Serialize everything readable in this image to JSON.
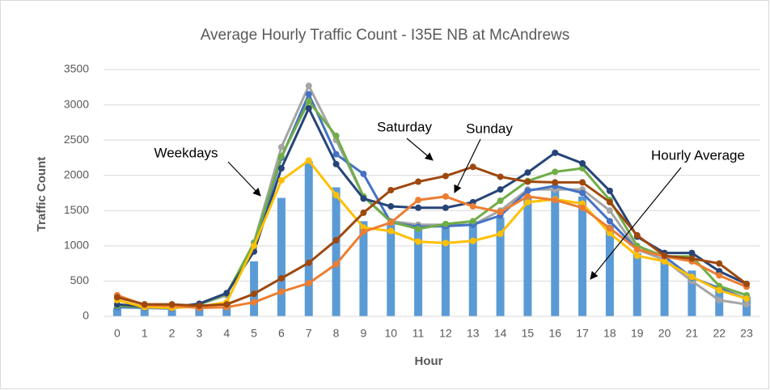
{
  "chart_data": {
    "type": "combo",
    "title": "Average Hourly Traffic Count - I35E NB at McAndrews",
    "x_label": "Hour",
    "y_label": "Traffic Count",
    "categories": [
      "0",
      "1",
      "2",
      "3",
      "4",
      "5",
      "6",
      "7",
      "8",
      "9",
      "10",
      "11",
      "12",
      "13",
      "14",
      "15",
      "16",
      "17",
      "18",
      "19",
      "20",
      "21",
      "22",
      "23"
    ],
    "ylim": [
      0,
      3500
    ],
    "yticks": [
      0,
      500,
      1000,
      1500,
      2000,
      2500,
      3000,
      3500
    ],
    "grid": true,
    "series": [
      {
        "type": "bar",
        "color": "#5b9bd5",
        "values": [
          120,
          100,
          90,
          130,
          200,
          780,
          1680,
          2200,
          1830,
          1350,
          1300,
          1300,
          1300,
          1350,
          1400,
          1700,
          1800,
          1700,
          1300,
          900,
          800,
          650,
          380,
          280
        ]
      },
      {
        "type": "line",
        "color": "#a5a5a5",
        "values": [
          150,
          130,
          120,
          170,
          300,
          1050,
          2400,
          3270,
          2500,
          1700,
          1350,
          1300,
          1300,
          1300,
          1500,
          1800,
          1800,
          1800,
          1500,
          950,
          800,
          500,
          230,
          170
        ]
      },
      {
        "type": "line",
        "color": "#4472c4",
        "values": [
          130,
          120,
          110,
          170,
          320,
          980,
          2250,
          3150,
          2300,
          2020,
          1330,
          1270,
          1280,
          1300,
          1430,
          1780,
          1850,
          1750,
          1350,
          950,
          850,
          550,
          400,
          250
        ]
      },
      {
        "type": "line",
        "color": "#70ad47",
        "values": [
          150,
          130,
          120,
          170,
          320,
          1040,
          2270,
          3050,
          2560,
          1700,
          1340,
          1240,
          1310,
          1350,
          1640,
          1920,
          2050,
          2100,
          1650,
          1000,
          850,
          850,
          430,
          300
        ]
      },
      {
        "type": "line",
        "color": "#264478",
        "values": [
          170,
          140,
          130,
          180,
          330,
          920,
          2100,
          2950,
          2160,
          1670,
          1560,
          1540,
          1540,
          1620,
          1800,
          2040,
          2320,
          2170,
          1780,
          1130,
          900,
          900,
          640,
          460
        ]
      },
      {
        "type": "line",
        "color": "#ffc000",
        "values": [
          230,
          130,
          120,
          140,
          200,
          1000,
          1930,
          2210,
          1720,
          1260,
          1210,
          1060,
          1040,
          1070,
          1170,
          1620,
          1660,
          1600,
          1180,
          860,
          780,
          560,
          370,
          250
        ]
      },
      {
        "type": "line",
        "color": "#ed7d31",
        "values": [
          300,
          160,
          150,
          120,
          130,
          200,
          350,
          470,
          740,
          1200,
          1330,
          1650,
          1700,
          1560,
          1480,
          1700,
          1650,
          1540,
          1250,
          950,
          850,
          780,
          580,
          420
        ]
      },
      {
        "type": "line",
        "color": "#9e480e",
        "values": [
          270,
          170,
          170,
          150,
          170,
          320,
          540,
          760,
          1080,
          1470,
          1790,
          1910,
          1990,
          2120,
          1980,
          1910,
          1900,
          1900,
          1620,
          1150,
          860,
          820,
          750,
          460
        ]
      }
    ],
    "annotations": [
      {
        "text": "Weekdays"
      },
      {
        "text": "Saturday"
      },
      {
        "text": "Sunday"
      },
      {
        "text": "Hourly Average"
      }
    ]
  }
}
